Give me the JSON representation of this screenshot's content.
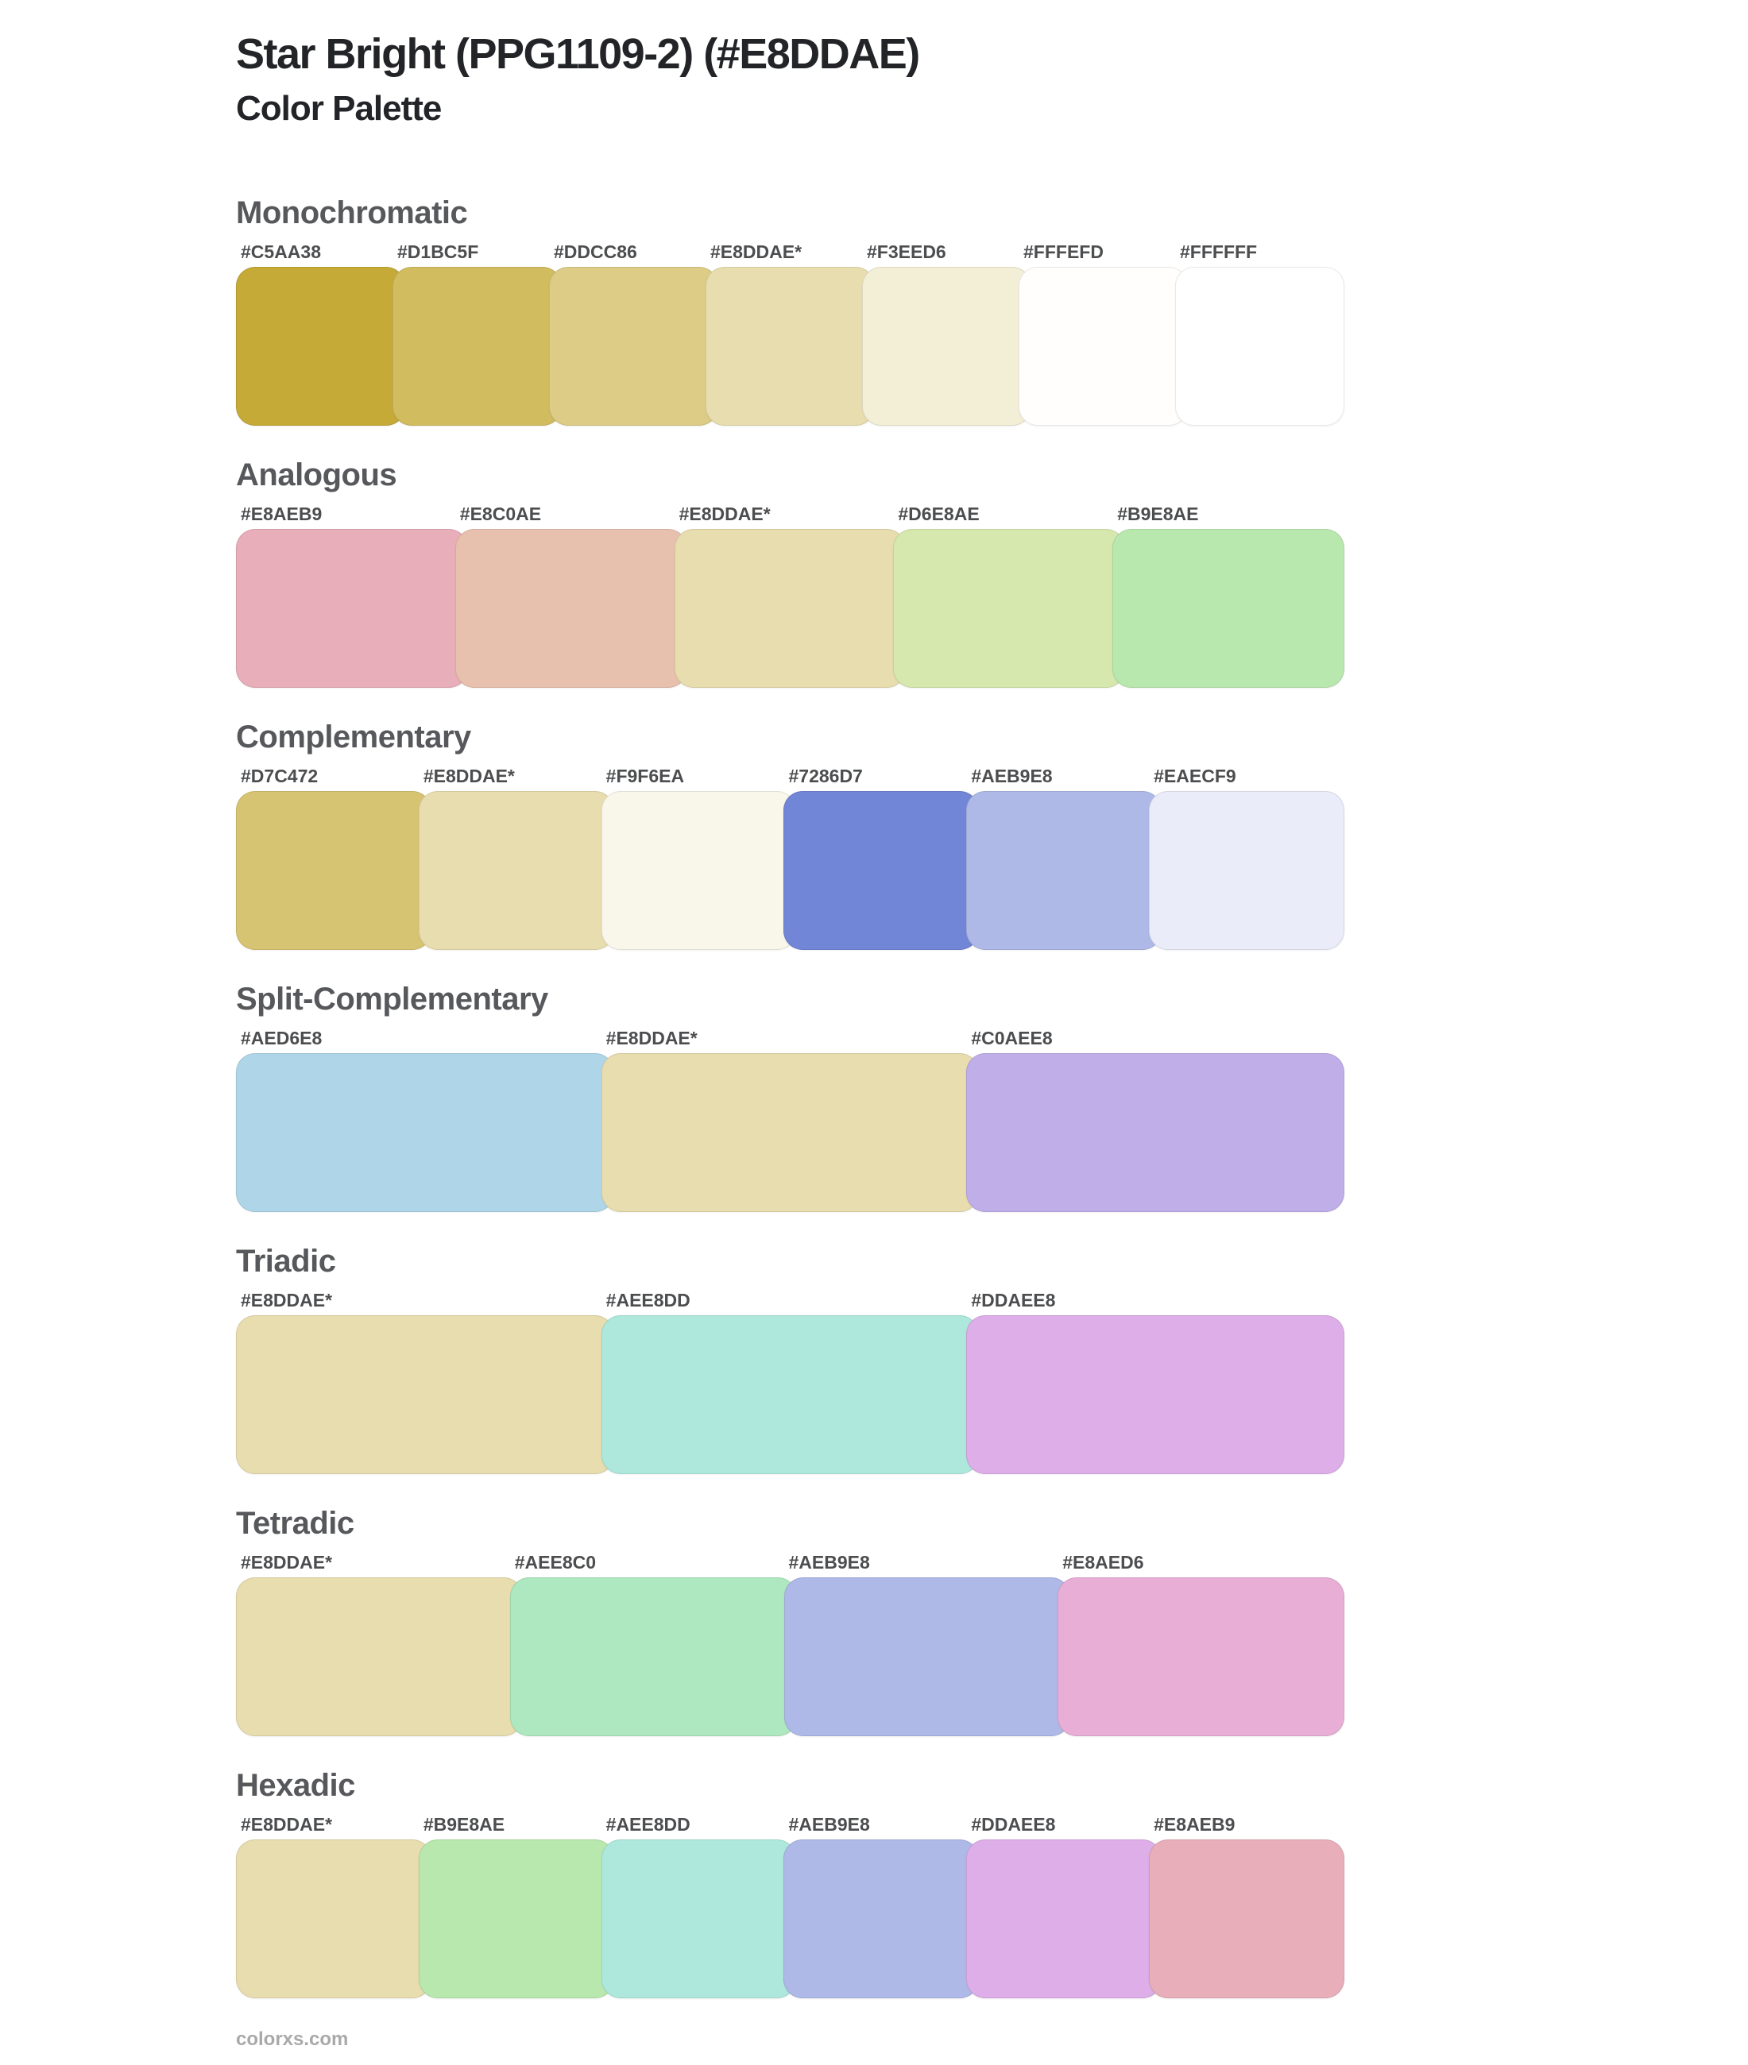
{
  "header": {
    "title": "Star Bright (PPG1109-2) (#E8DDAE)",
    "subtitle": "Color Palette"
  },
  "base_color": {
    "name": "Star Bright",
    "code": "PPG1109-2",
    "hex": "#E8DDAE"
  },
  "palette": {
    "sections": [
      {
        "label": "Monochromatic",
        "swatches": [
          {
            "label": "#C5AA38",
            "hex": "#C5AA38"
          },
          {
            "label": "#D1BC5F",
            "hex": "#D1BC5F"
          },
          {
            "label": "#DDCC86",
            "hex": "#DDCC86"
          },
          {
            "label": "#E8DDAE*",
            "hex": "#E8DDAE"
          },
          {
            "label": "#F3EED6",
            "hex": "#F3EED6"
          },
          {
            "label": "#FFFEFD",
            "hex": "#FFFEFD"
          },
          {
            "label": "#FFFFFF",
            "hex": "#FFFFFF"
          }
        ]
      },
      {
        "label": "Analogous",
        "swatches": [
          {
            "label": "#E8AEB9",
            "hex": "#E8AEB9"
          },
          {
            "label": "#E8C0AE",
            "hex": "#E8C0AE"
          },
          {
            "label": "#E8DDAE*",
            "hex": "#E8DDAE"
          },
          {
            "label": "#D6E8AE",
            "hex": "#D6E8AE"
          },
          {
            "label": "#B9E8AE",
            "hex": "#B9E8AE"
          }
        ]
      },
      {
        "label": "Complementary",
        "swatches": [
          {
            "label": "#D7C472",
            "hex": "#D7C472"
          },
          {
            "label": "#E8DDAE*",
            "hex": "#E8DDAE"
          },
          {
            "label": "#F9F6EA",
            "hex": "#F9F6EA"
          },
          {
            "label": "#7286D7",
            "hex": "#7286D7"
          },
          {
            "label": "#AEB9E8",
            "hex": "#AEB9E8"
          },
          {
            "label": "#EAECF9",
            "hex": "#EAECF9"
          }
        ]
      },
      {
        "label": "Split-Complementary",
        "swatches": [
          {
            "label": "#AED6E8",
            "hex": "#AED6E8"
          },
          {
            "label": "#E8DDAE*",
            "hex": "#E8DDAE"
          },
          {
            "label": "#C0AEE8",
            "hex": "#C0AEE8"
          }
        ]
      },
      {
        "label": "Triadic",
        "swatches": [
          {
            "label": "#E8DDAE*",
            "hex": "#E8DDAE"
          },
          {
            "label": "#AEE8DD",
            "hex": "#AEE8DD"
          },
          {
            "label": "#DDAEE8",
            "hex": "#DDAEE8"
          }
        ]
      },
      {
        "label": "Tetradic",
        "swatches": [
          {
            "label": "#E8DDAE*",
            "hex": "#E8DDAE"
          },
          {
            "label": "#AEE8C0",
            "hex": "#AEE8C0"
          },
          {
            "label": "#AEB9E8",
            "hex": "#AEB9E8"
          },
          {
            "label": "#E8AED6",
            "hex": "#E8AED6"
          }
        ]
      },
      {
        "label": "Hexadic",
        "swatches": [
          {
            "label": "#E8DDAE*",
            "hex": "#E8DDAE"
          },
          {
            "label": "#B9E8AE",
            "hex": "#B9E8AE"
          },
          {
            "label": "#AEE8DD",
            "hex": "#AEE8DD"
          },
          {
            "label": "#AEB9E8",
            "hex": "#AEB9E8"
          },
          {
            "label": "#DDAEE8",
            "hex": "#DDAEE8"
          },
          {
            "label": "#E8AEB9",
            "hex": "#E8AEB9"
          }
        ]
      }
    ]
  },
  "footer": {
    "site": "colorxs.com"
  }
}
